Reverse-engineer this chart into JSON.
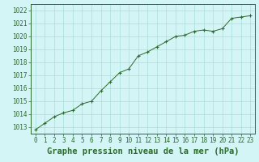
{
  "x": [
    0,
    1,
    2,
    3,
    4,
    5,
    6,
    7,
    8,
    9,
    10,
    11,
    12,
    13,
    14,
    15,
    16,
    17,
    18,
    19,
    20,
    21,
    22,
    23
  ],
  "y": [
    1012.8,
    1013.3,
    1013.8,
    1014.1,
    1014.3,
    1014.8,
    1015.0,
    1015.8,
    1016.5,
    1017.2,
    1017.5,
    1018.5,
    1018.8,
    1019.2,
    1019.6,
    1020.0,
    1020.1,
    1020.4,
    1020.5,
    1020.4,
    1020.6,
    1021.4,
    1021.5,
    1021.6
  ],
  "ylim": [
    1012.5,
    1022.5
  ],
  "yticks": [
    1013,
    1014,
    1015,
    1016,
    1017,
    1018,
    1019,
    1020,
    1021,
    1022
  ],
  "xticks": [
    0,
    1,
    2,
    3,
    4,
    5,
    6,
    7,
    8,
    9,
    10,
    11,
    12,
    13,
    14,
    15,
    16,
    17,
    18,
    19,
    20,
    21,
    22,
    23
  ],
  "xlabel": "Graphe pression niveau de la mer (hPa)",
  "line_color": "#2d6a2d",
  "marker_color": "#2d6a2d",
  "bg_color": "#d4f5f5",
  "grid_color": "#aadddd",
  "axis_color": "#2d6a2d",
  "tick_color": "#2d6a2d",
  "xlabel_color": "#2d6a2d",
  "tick_fontsize": 5.5,
  "xlabel_fontsize": 7.5
}
